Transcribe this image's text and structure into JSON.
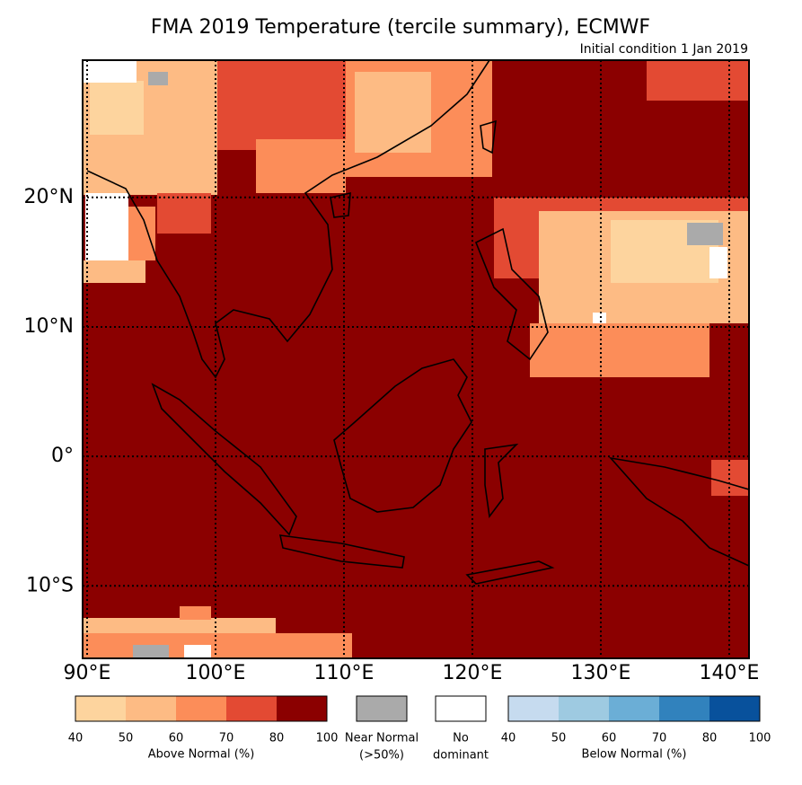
{
  "title": "FMA 2019 Temperature (tercile summary), ECMWF",
  "subtitle": "Initial condition 1 Jan 2019",
  "lon_range": [
    89.65,
    141.54
  ],
  "lat_range": [
    -15.6,
    30.6
  ],
  "lon_ticks": [
    {
      "value": 90,
      "label": "90°E"
    },
    {
      "value": 100,
      "label": "100°E"
    },
    {
      "value": 110,
      "label": "110°E"
    },
    {
      "value": 120,
      "label": "120°E"
    },
    {
      "value": 130,
      "label": "130°E"
    },
    {
      "value": 140,
      "label": "140°E"
    }
  ],
  "lat_ticks": [
    {
      "value": 20,
      "label": "20°N"
    },
    {
      "value": 10,
      "label": "10°N"
    },
    {
      "value": 0,
      "label": "0°"
    },
    {
      "value": -10,
      "label": "10°S"
    }
  ],
  "legend": {
    "above_normal": {
      "label": "Above Normal (%)",
      "ticks": [
        40,
        50,
        60,
        70,
        80,
        100
      ],
      "colors": [
        "#fdd49e",
        "#fdbb84",
        "#fc8d59",
        "#e34a33",
        "#8b0000"
      ]
    },
    "near_normal": {
      "lines": [
        "Near Normal",
        "(>50%)"
      ],
      "color": "#aaaaaa"
    },
    "no_dominant": {
      "lines": [
        "No",
        "dominant"
      ],
      "color": "#ffffff"
    },
    "below_normal": {
      "label": "Below Normal (%)",
      "ticks": [
        40,
        50,
        60,
        70,
        80,
        100
      ],
      "colors": [
        "#c6dbef",
        "#9ecae1",
        "#6baed6",
        "#3182bd",
        "#08519c"
      ]
    }
  }
}
